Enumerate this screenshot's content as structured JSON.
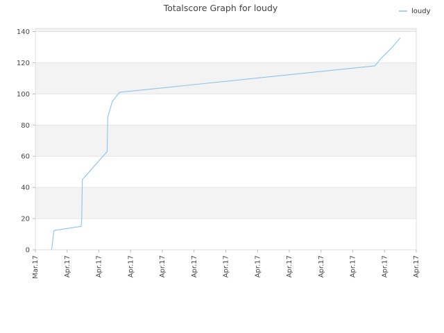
{
  "chart_data": {
    "type": "line",
    "title": "Totalscore Graph for loudy",
    "xlabel": "",
    "ylabel": "",
    "ylim": [
      0,
      142
    ],
    "yticks": [
      0,
      20,
      40,
      60,
      80,
      100,
      120,
      140
    ],
    "xticks": [
      "Mar.17",
      "Apr.17",
      "Apr.17",
      "Apr.17",
      "Apr.17",
      "Apr.17",
      "Apr.17",
      "Apr.17",
      "Apr.17",
      "Apr.17",
      "Apr.17",
      "Apr.17",
      "Apr.17"
    ],
    "grid": "horizontal alternating bands",
    "legend": "top-right",
    "series": [
      {
        "name": "loudy",
        "color": "#88c4f0",
        "x": [
          0.5,
          0.52,
          0.58,
          0.62,
          1.44,
          1.46,
          1.48,
          2.26,
          2.28,
          2.42,
          2.65,
          10.7,
          10.9,
          11.2,
          11.5
        ],
        "values": [
          0,
          1,
          12,
          12.5,
          15,
          20,
          45,
          63,
          85,
          95,
          101,
          118,
          123,
          129,
          136
        ]
      }
    ]
  }
}
